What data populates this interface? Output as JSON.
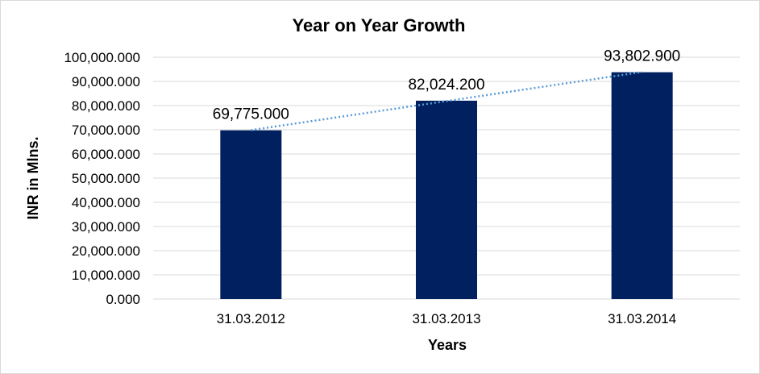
{
  "chart_data": {
    "type": "bar",
    "title": "Year on Year Growth",
    "xlabel": "Years",
    "ylabel": "INR in Mlns.",
    "categories": [
      "31.03.2012",
      "31.03.2013",
      "31.03.2014"
    ],
    "values": [
      69775.0,
      82024.2,
      93802.9
    ],
    "value_labels": [
      "69,775.000",
      "82,024.200",
      "93,802.900"
    ],
    "ylim": [
      0,
      100000
    ],
    "yticks": [
      0,
      10000,
      20000,
      30000,
      40000,
      50000,
      60000,
      70000,
      80000,
      90000,
      100000
    ],
    "ytick_labels": [
      "0.000",
      "10,000.000",
      "20,000.000",
      "30,000.000",
      "40,000.000",
      "50,000.000",
      "60,000.000",
      "70,000.000",
      "80,000.000",
      "90,000.000",
      "100,000.000"
    ],
    "grid": true,
    "legend": "none",
    "trendline": "linear, dotted",
    "colors": {
      "bar": "#002060",
      "trendline": "#5b9bd5",
      "gridline": "#d9d9d9"
    }
  }
}
